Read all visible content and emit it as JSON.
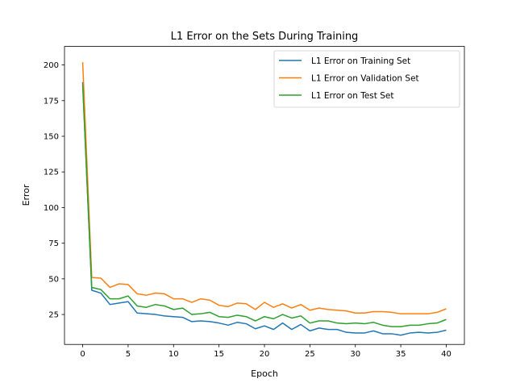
{
  "chart_data": {
    "type": "line",
    "title": "L1 Error on the Sets During Training",
    "xlabel": "Epoch",
    "ylabel": "Error",
    "xlim": [
      -2,
      42
    ],
    "ylim": [
      4,
      213
    ],
    "xticks": [
      0,
      5,
      10,
      15,
      20,
      25,
      30,
      35,
      40
    ],
    "yticks": [
      25,
      50,
      75,
      100,
      125,
      150,
      175,
      200
    ],
    "grid": false,
    "legend_position": "top-right",
    "x": [
      0,
      1,
      2,
      3,
      4,
      5,
      6,
      7,
      8,
      9,
      10,
      11,
      12,
      13,
      14,
      15,
      16,
      17,
      18,
      19,
      20,
      21,
      22,
      23,
      24,
      25,
      26,
      27,
      28,
      29,
      30,
      31,
      32,
      33,
      34,
      35,
      36,
      37,
      38,
      39,
      40
    ],
    "series": [
      {
        "name": "L1 Error on Training Set",
        "color": "#1f77b4",
        "values": [
          188,
          42,
          40,
          32,
          33,
          34,
          26,
          25.5,
          25,
          24,
          23.5,
          23,
          20,
          20.5,
          20,
          19,
          17.5,
          19.5,
          18.5,
          15,
          17,
          14.5,
          19,
          14.5,
          18,
          13.5,
          15.5,
          14.5,
          14.5,
          12.5,
          12,
          12,
          13.5,
          11.5,
          11.5,
          10.5,
          12,
          12.5,
          12,
          12.5,
          14
        ]
      },
      {
        "name": "L1 Error on Validation Set",
        "color": "#ff7f0e",
        "values": [
          202,
          51,
          50.5,
          44,
          46.5,
          46,
          39.5,
          38.5,
          40,
          39.5,
          36,
          36,
          33.5,
          36,
          35,
          31.5,
          30.5,
          33,
          32.5,
          28.5,
          33.5,
          30,
          32.5,
          29.5,
          32,
          28,
          29.5,
          28.5,
          28,
          27.5,
          26,
          26,
          27,
          27,
          26.5,
          25.5,
          25.5,
          25.5,
          25.5,
          26.5,
          29
        ]
      },
      {
        "name": "L1 Error on Test Set",
        "color": "#2ca02c",
        "values": [
          186,
          44,
          42.5,
          36,
          36,
          38,
          31,
          30,
          32,
          31,
          28.5,
          29.5,
          25,
          25.5,
          26.5,
          23.5,
          23,
          24.5,
          23.5,
          20.5,
          23.5,
          22,
          25,
          22.5,
          24,
          19,
          20.5,
          20.5,
          19,
          18.5,
          19,
          18.5,
          19.5,
          17.5,
          16.5,
          16.5,
          17.5,
          17.5,
          18.5,
          19,
          21.5
        ]
      }
    ]
  }
}
